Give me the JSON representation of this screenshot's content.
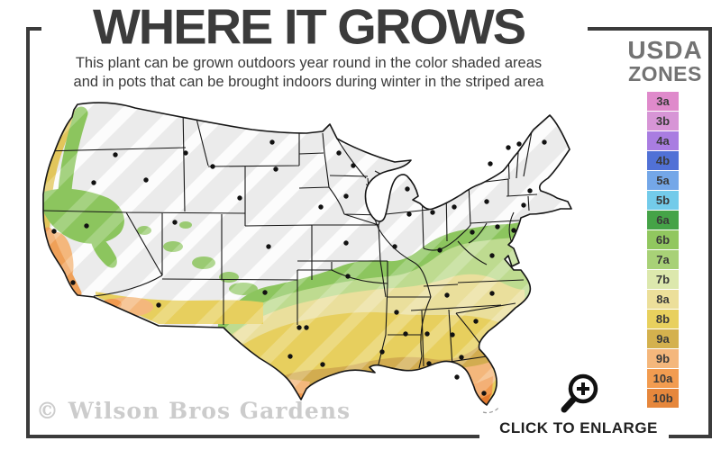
{
  "header": {
    "title": "WHERE IT GROWS",
    "subtitle_line1": "This plant can be grown outdoors year round in the color shaded areas",
    "subtitle_line2": "and in pots that can be brought indoors during winter in the striped area"
  },
  "legend": {
    "heading_line1": "USDA",
    "heading_line2": "ZONES",
    "zones": [
      {
        "label": "3a",
        "color": "#df8acb"
      },
      {
        "label": "3b",
        "color": "#d795d6"
      },
      {
        "label": "4a",
        "color": "#a97de1"
      },
      {
        "label": "4b",
        "color": "#5171d6"
      },
      {
        "label": "5a",
        "color": "#74a7e8"
      },
      {
        "label": "5b",
        "color": "#73cbea"
      },
      {
        "label": "6a",
        "color": "#45a347"
      },
      {
        "label": "6b",
        "color": "#91c75f"
      },
      {
        "label": "7a",
        "color": "#a8d177"
      },
      {
        "label": "7b",
        "color": "#dce8ad"
      },
      {
        "label": "8a",
        "color": "#ecdf9a"
      },
      {
        "label": "8b",
        "color": "#e8d05e"
      },
      {
        "label": "9a",
        "color": "#d4b14e"
      },
      {
        "label": "9b",
        "color": "#f4b77c"
      },
      {
        "label": "10a",
        "color": "#f29c50"
      },
      {
        "label": "10b",
        "color": "#e6873c"
      }
    ]
  },
  "map_colors": {
    "base": "#ebebeb",
    "stripe": "#ffffff",
    "border": "#161616",
    "dot": "#111111",
    "green": "#8cc55e",
    "light_green": "#bedb90",
    "pale_yellow": "#eadf9c",
    "yellow": "#e7cf5e",
    "mustard": "#d2ac50",
    "peach": "#f4b77c",
    "orange": "#f09a50",
    "deep_orange": "#e2792e",
    "coast_yellow": "#e2c65c",
    "coast_orange": "#efa058"
  },
  "watermark": "© Wilson Bros Gardens",
  "enlarge": {
    "label": "CLICK TO ENLARGE",
    "icon": "magnifier-plus-icon"
  }
}
